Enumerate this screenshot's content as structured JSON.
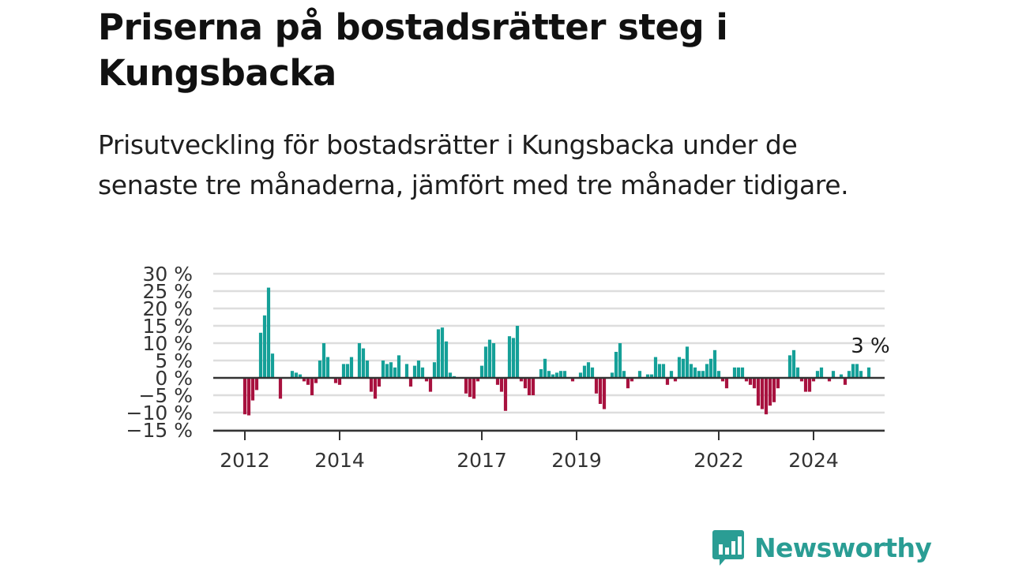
{
  "title": "Priserna på bostadsrätter steg i Kungsbacka",
  "subtitle": "Prisutveckling för bostadsrätter i Kungsbacka under de senaste tre månaderna, jämfört med tre månader tidigare.",
  "brand": {
    "name": "Newsworthy",
    "color": "#2a9d94"
  },
  "chart_data": {
    "type": "bar",
    "x_start": "2012-01",
    "frequency": "monthly",
    "ylim": [
      -15,
      30
    ],
    "yticks": [
      30,
      25,
      20,
      15,
      10,
      5,
      0,
      -5,
      -10,
      -15
    ],
    "ytick_labels": [
      "30 %",
      "25 %",
      "20 %",
      "15 %",
      "10 %",
      "5 %",
      "0 %",
      "−5 %",
      "−10 %",
      "−15 %"
    ],
    "xtick_labels": [
      {
        "label": "2012",
        "date": "2012-01"
      },
      {
        "label": "2014",
        "date": "2014-01"
      },
      {
        "label": "2017",
        "date": "2017-01"
      },
      {
        "label": "2019",
        "date": "2019-01"
      },
      {
        "label": "2022",
        "date": "2022-01"
      },
      {
        "label": "2024",
        "date": "2024-01"
      }
    ],
    "grid": true,
    "colors": {
      "positive": "#15a098",
      "negative": "#a8123f",
      "grid": "#dddddd",
      "axis": "#333333"
    },
    "annotation": "3 %",
    "values": [
      -10.5,
      -10.8,
      -6.5,
      -3.5,
      13,
      18,
      26,
      7,
      0,
      -6,
      0,
      0,
      2,
      1.5,
      1,
      -1,
      -2,
      -5,
      -1.5,
      5,
      10,
      6,
      0,
      -1.5,
      -2,
      4,
      4,
      6,
      0,
      10,
      8.5,
      5,
      -4,
      -6,
      -2.5,
      5,
      4,
      4.5,
      3,
      6.5,
      0,
      4,
      -2.5,
      3.5,
      5,
      3,
      -1,
      -4,
      4.5,
      14,
      14.5,
      10.5,
      1.5,
      0.5,
      0,
      0,
      -4.5,
      -5.5,
      -6,
      -1,
      3.5,
      9,
      11,
      10,
      -2,
      -4,
      -9.5,
      12,
      11.5,
      15,
      -1,
      -3,
      -5,
      -5,
      0,
      2.5,
      5.5,
      2,
      1,
      1.5,
      2,
      2,
      0,
      -1,
      0,
      1.5,
      3.5,
      4.5,
      3,
      -4.5,
      -7.5,
      -9,
      0,
      1.5,
      7.5,
      10,
      2,
      -3,
      -1,
      0,
      2,
      0,
      1,
      1,
      6,
      4,
      4,
      -2,
      2,
      -1,
      6,
      5.5,
      9,
      4,
      3,
      2,
      2,
      4,
      5.5,
      8,
      2,
      -1,
      -3,
      0,
      3,
      3,
      3,
      -1,
      -2,
      -3,
      -8,
      -9,
      -10.5,
      -8,
      -7,
      -3,
      0,
      0,
      6.5,
      8,
      3,
      -1,
      -4,
      -4,
      -1,
      2,
      3,
      0,
      -1,
      2,
      0,
      1,
      -2,
      2,
      4,
      4,
      2,
      0,
      3,
      0
    ]
  }
}
